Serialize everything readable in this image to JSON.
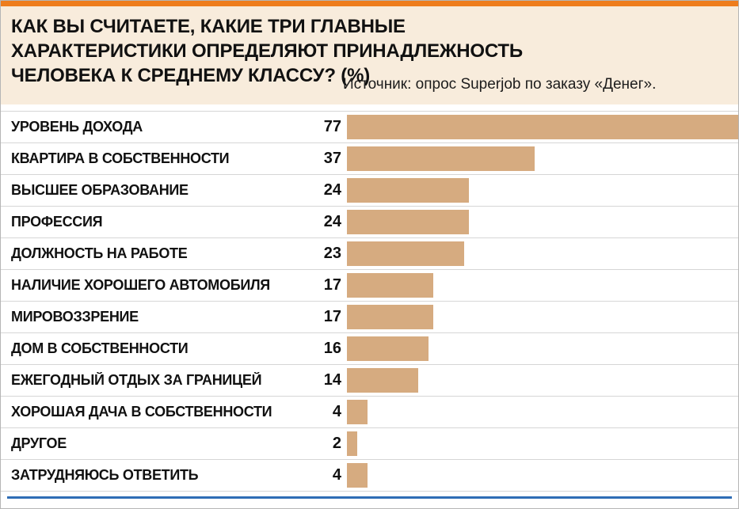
{
  "header": {
    "title": "КАК ВЫ СЧИТАЕТЕ, КАКИЕ ТРИ ГЛАВНЫЕ ХАРАКТЕРИСТИКИ ОПРЕДЕЛЯЮТ ПРИНАДЛЕЖНОСТЬ ЧЕЛОВЕКА К СРЕДНЕМУ КЛАССУ? (%)",
    "source": "Источник: опрос Superjob по заказу «Денег»."
  },
  "colors": {
    "top_accent": "#ee7d1d",
    "header_bg": "#f8ecdc",
    "bar": "#d6ab80",
    "bottom_line": "#2f6db5",
    "text": "#111111",
    "separator": "#d6d6d6"
  },
  "chart_data": {
    "type": "bar",
    "orientation": "horizontal",
    "title": "КАК ВЫ СЧИТАЕТЕ, КАКИЕ ТРИ ГЛАВНЫЕ ХАРАКТЕРИСТИКИ ОПРЕДЕЛЯЮТ ПРИНАДЛЕЖНОСТЬ ЧЕЛОВЕКА К СРЕДНЕМУ КЛАССУ? (%)",
    "source": "Источник: опрос Superjob по заказу «Денег».",
    "unit": "%",
    "categories": [
      "УРОВЕНЬ ДОХОДА",
      "КВАРТИРА В СОБСТВЕННОСТИ",
      "ВЫСШЕЕ ОБРАЗОВАНИЕ",
      "ПРОФЕССИЯ",
      "ДОЛЖНОСТЬ НА РАБОТЕ",
      "НАЛИЧИЕ ХОРОШЕГО АВТОМОБИЛЯ",
      "МИРОВОЗЗРЕНИЕ",
      "ДОМ В СОБСТВЕННОСТИ",
      "ЕЖЕГОДНЫЙ ОТДЫХ ЗА ГРАНИЦЕЙ",
      "ХОРОШАЯ ДАЧА В СОБСТВЕННОСТИ",
      "ДРУГОЕ",
      "ЗАТРУДНЯЮСЬ ОТВЕТИТЬ"
    ],
    "values": [
      77,
      37,
      24,
      24,
      23,
      17,
      17,
      16,
      14,
      4,
      2,
      4
    ],
    "max_value": 77,
    "xlim": [
      0,
      77
    ],
    "value_labels_shown": true,
    "grid": false,
    "legend": false
  }
}
